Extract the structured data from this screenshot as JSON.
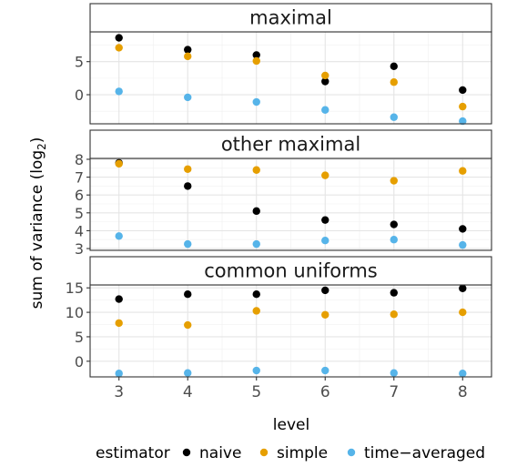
{
  "chart_data": {
    "type": "scatter",
    "ylabel": "sum of variance (log",
    "ylabel_sub": "2",
    "ylabel_close": ")",
    "xlabel": "level",
    "x": [
      3,
      4,
      5,
      6,
      7,
      8
    ],
    "x_ticks": [
      "3",
      "4",
      "5",
      "6",
      "7",
      "8"
    ],
    "xlim": [
      2.58,
      8.42
    ],
    "legend": {
      "title": "estimator",
      "position": "bottom",
      "entries": [
        {
          "name": "naive",
          "color": "#000000"
        },
        {
          "name": "simple",
          "color": "#E69F00"
        },
        {
          "name": "time−averaged",
          "color": "#56B4E9"
        }
      ]
    },
    "grid": true,
    "panels": [
      {
        "title": "maximal",
        "ylim": [
          -4.4,
          9.5
        ],
        "y_ticks": [
          0,
          5
        ],
        "y_minor": [
          -2.5,
          2.5,
          7.5
        ],
        "series": [
          {
            "name": "naive",
            "values": [
              8.6,
              6.8,
              6.0,
              2.0,
              4.3,
              0.7
            ]
          },
          {
            "name": "simple",
            "values": [
              7.1,
              5.8,
              5.1,
              2.9,
              1.9,
              -1.8
            ]
          },
          {
            "name": "time−averaged",
            "values": [
              0.5,
              -0.4,
              -1.1,
              -2.3,
              -3.4,
              -4.0
            ]
          }
        ]
      },
      {
        "title": "other maximal",
        "ylim": [
          2.9,
          8.05
        ],
        "y_ticks": [
          3,
          4,
          5,
          6,
          7,
          8
        ],
        "y_minor": [
          3.5,
          4.5,
          5.5,
          6.5,
          7.5
        ],
        "series": [
          {
            "name": "naive",
            "values": [
              7.8,
              6.5,
              5.1,
              4.6,
              4.35,
              4.1
            ]
          },
          {
            "name": "simple",
            "values": [
              7.75,
              7.45,
              7.4,
              7.1,
              6.8,
              7.35
            ]
          },
          {
            "name": "time−averaged",
            "values": [
              3.7,
              3.25,
              3.25,
              3.45,
              3.5,
              3.2
            ]
          }
        ]
      },
      {
        "title": "common uniforms",
        "ylim": [
          -3.2,
          15.6
        ],
        "y_ticks": [
          0,
          5,
          10,
          15
        ],
        "y_minor": [
          2.5,
          7.5,
          12.5
        ],
        "series": [
          {
            "name": "naive",
            "values": [
              12.7,
              13.7,
              13.7,
              14.5,
              14.0,
              14.9
            ]
          },
          {
            "name": "simple",
            "values": [
              7.8,
              7.4,
              10.3,
              9.5,
              9.6,
              10.0
            ]
          },
          {
            "name": "time−averaged",
            "values": [
              -2.5,
              -2.4,
              -1.9,
              -1.9,
              -2.4,
              -2.5
            ]
          }
        ]
      }
    ]
  }
}
